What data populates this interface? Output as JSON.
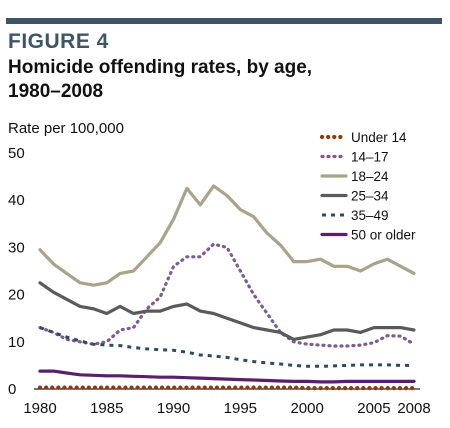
{
  "figure_label": "FIGURE 4",
  "title_line1": "Homicide offending rates, by age,",
  "title_line2": "1980–2008",
  "chart_data": {
    "type": "line",
    "title": "Homicide offending rates, by age, 1980–2008",
    "ylabel": "Rate per 100,000",
    "xlabel": "",
    "xlim": [
      1980,
      2008
    ],
    "ylim": [
      0,
      50
    ],
    "x_ticks": [
      1980,
      1985,
      1990,
      1995,
      2000,
      2005,
      2008
    ],
    "y_ticks": [
      0,
      10,
      20,
      30,
      40,
      50
    ],
    "grid": false,
    "legend_position": "top-right",
    "x": [
      1980,
      1981,
      1982,
      1983,
      1984,
      1985,
      1986,
      1987,
      1988,
      1989,
      1990,
      1991,
      1992,
      1993,
      1994,
      1995,
      1996,
      1997,
      1998,
      1999,
      2000,
      2001,
      2002,
      2003,
      2004,
      2005,
      2006,
      2007,
      2008
    ],
    "series": [
      {
        "name": "Under 14",
        "color": "#8b3a12",
        "style": "dotted-round",
        "values": [
          0.3,
          0.3,
          0.3,
          0.3,
          0.3,
          0.3,
          0.3,
          0.3,
          0.3,
          0.3,
          0.3,
          0.3,
          0.3,
          0.3,
          0.3,
          0.3,
          0.3,
          0.3,
          0.3,
          0.3,
          0.2,
          0.2,
          0.2,
          0.2,
          0.2,
          0.2,
          0.2,
          0.2,
          0.2
        ]
      },
      {
        "name": "14–17",
        "color": "#7c5c8e",
        "style": "dotted",
        "values": [
          13,
          12,
          10.5,
          10,
          9.5,
          10,
          12.5,
          13,
          17,
          19.5,
          26,
          28,
          28,
          30.7,
          30,
          25,
          20,
          16,
          12,
          10,
          9.5,
          9.3,
          9.1,
          9.1,
          9.3,
          9.8,
          11.3,
          11.2,
          9.5
        ]
      },
      {
        "name": "18–24",
        "color": "#a8a38a",
        "style": "solid",
        "values": [
          29.5,
          26.5,
          24.5,
          22.5,
          22,
          22.5,
          24.5,
          25,
          28,
          31,
          36,
          42.5,
          39,
          43,
          41,
          38,
          36.5,
          33,
          30.5,
          27,
          27,
          27.5,
          26,
          26,
          25,
          26.5,
          27.5,
          26,
          24.5
        ]
      },
      {
        "name": "25–34",
        "color": "#5a5a5a",
        "style": "solid",
        "values": [
          22.5,
          20.5,
          19,
          17.5,
          17,
          16,
          17.5,
          16,
          16.5,
          16.5,
          17.5,
          18,
          16.5,
          16,
          15,
          14,
          13,
          12.5,
          12,
          10.5,
          11,
          11.5,
          12.5,
          12.5,
          12,
          13,
          13,
          13,
          12.5
        ]
      },
      {
        "name": "35–49",
        "color": "#2e4a5e",
        "style": "dashed",
        "values": [
          13,
          12,
          11,
          10.2,
          9.5,
          9.3,
          9.2,
          8.8,
          8.5,
          8.3,
          8.2,
          7.8,
          7.2,
          7,
          6.7,
          6.2,
          5.8,
          5.5,
          5.3,
          5,
          4.8,
          4.8,
          4.9,
          5,
          5.1,
          5.1,
          5.1,
          5,
          5
        ]
      },
      {
        "name": "50 or older",
        "color": "#5a1f6b",
        "style": "solid",
        "values": [
          3.8,
          3.8,
          3.4,
          3.0,
          2.9,
          2.8,
          2.8,
          2.7,
          2.6,
          2.5,
          2.5,
          2.4,
          2.3,
          2.2,
          2.1,
          2.0,
          1.9,
          1.8,
          1.7,
          1.6,
          1.6,
          1.5,
          1.5,
          1.6,
          1.6,
          1.6,
          1.6,
          1.6,
          1.6
        ]
      }
    ]
  }
}
